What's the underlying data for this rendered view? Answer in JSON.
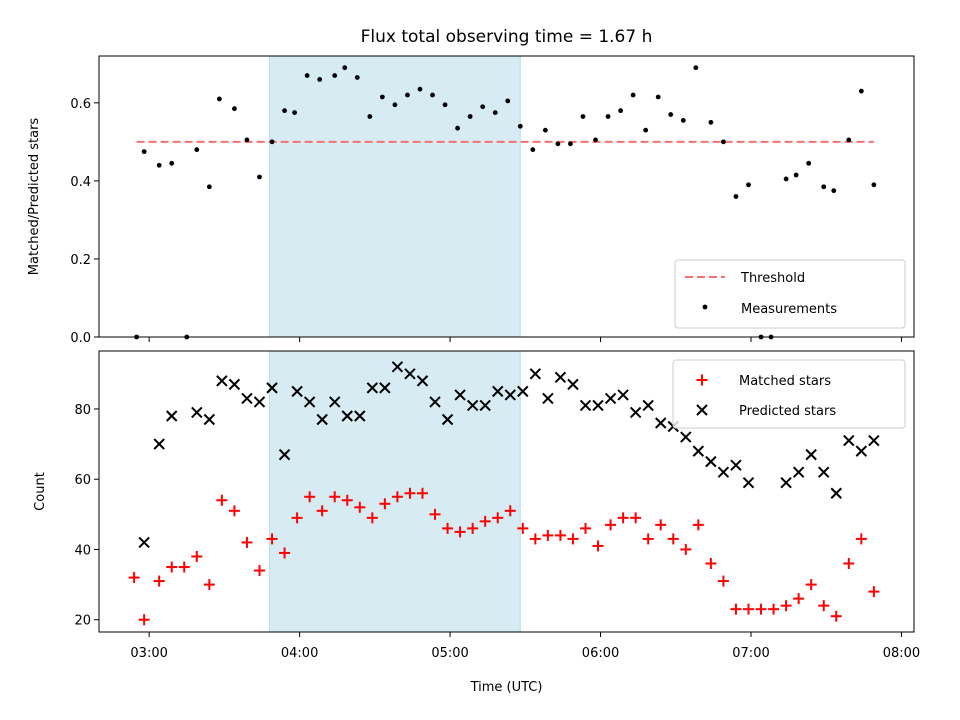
{
  "chart_data": [
    {
      "type": "scatter",
      "title": "Flux total observing time = 1.67 h",
      "ylabel": "Matched/Predicted stars",
      "xlim": [
        "02:40",
        "08:05"
      ],
      "ylim": [
        0,
        0.72
      ],
      "yticks": [
        "0.0",
        "0.2",
        "0.4",
        "0.6"
      ],
      "shaded_interval": [
        "03:48",
        "05:28"
      ],
      "legend_position": "lower right",
      "threshold": {
        "name": "Threshold",
        "value": 0.5,
        "x_range": [
          "02:55",
          "07:49"
        ],
        "color": "#f87171"
      },
      "series": [
        {
          "name": "Measurements",
          "color": "#000000",
          "marker": "dot",
          "points": [
            [
              "02:55",
              0.0
            ],
            [
              "02:58",
              0.475
            ],
            [
              "03:04",
              0.44
            ],
            [
              "03:09",
              0.445
            ],
            [
              "03:15",
              0.0
            ],
            [
              "03:19",
              0.48
            ],
            [
              "03:24",
              0.385
            ],
            [
              "03:28",
              0.61
            ],
            [
              "03:34",
              0.585
            ],
            [
              "03:39",
              0.505
            ],
            [
              "03:44",
              0.41
            ],
            [
              "03:49",
              0.5
            ],
            [
              "03:54",
              0.58
            ],
            [
              "03:58",
              0.575
            ],
            [
              "04:03",
              0.67
            ],
            [
              "04:08",
              0.66
            ],
            [
              "04:14",
              0.67
            ],
            [
              "04:18",
              0.69
            ],
            [
              "04:23",
              0.665
            ],
            [
              "04:28",
              0.565
            ],
            [
              "04:33",
              0.615
            ],
            [
              "04:38",
              0.595
            ],
            [
              "04:43",
              0.62
            ],
            [
              "04:48",
              0.635
            ],
            [
              "04:53",
              0.62
            ],
            [
              "04:58",
              0.595
            ],
            [
              "05:03",
              0.535
            ],
            [
              "05:08",
              0.565
            ],
            [
              "05:13",
              0.59
            ],
            [
              "05:18",
              0.575
            ],
            [
              "05:23",
              0.605
            ],
            [
              "05:28",
              0.54
            ],
            [
              "05:33",
              0.48
            ],
            [
              "05:38",
              0.53
            ],
            [
              "05:43",
              0.495
            ],
            [
              "05:48",
              0.495
            ],
            [
              "05:53",
              0.565
            ],
            [
              "05:58",
              0.505
            ],
            [
              "06:03",
              0.565
            ],
            [
              "06:08",
              0.58
            ],
            [
              "06:13",
              0.62
            ],
            [
              "06:18",
              0.53
            ],
            [
              "06:23",
              0.615
            ],
            [
              "06:28",
              0.57
            ],
            [
              "06:33",
              0.555
            ],
            [
              "06:38",
              0.69
            ],
            [
              "06:44",
              0.55
            ],
            [
              "06:49",
              0.5
            ],
            [
              "06:54",
              0.36
            ],
            [
              "06:59",
              0.39
            ],
            [
              "07:04",
              0.0
            ],
            [
              "07:08",
              0.0
            ],
            [
              "07:14",
              0.405
            ],
            [
              "07:18",
              0.415
            ],
            [
              "07:23",
              0.445
            ],
            [
              "07:29",
              0.385
            ],
            [
              "07:33",
              0.375
            ],
            [
              "07:39",
              0.505
            ],
            [
              "07:44",
              0.63
            ],
            [
              "07:49",
              0.39
            ]
          ]
        }
      ]
    },
    {
      "type": "scatter",
      "xlabel": "Time (UTC)",
      "ylabel": "Count",
      "xlim": [
        "02:40",
        "08:05"
      ],
      "ylim": [
        16.5,
        96.5
      ],
      "xticks": [
        "03:00",
        "04:00",
        "05:00",
        "06:00",
        "07:00",
        "08:00"
      ],
      "yticks": [
        "20",
        "40",
        "60",
        "80"
      ],
      "shaded_interval": [
        "03:48",
        "05:28"
      ],
      "legend_position": "upper right",
      "series": [
        {
          "name": "Matched stars",
          "color": "#ff0000",
          "marker": "plus",
          "points": [
            [
              "02:54",
              32
            ],
            [
              "02:58",
              20
            ],
            [
              "03:04",
              31
            ],
            [
              "03:09",
              35
            ],
            [
              "03:14",
              35
            ],
            [
              "03:19",
              38
            ],
            [
              "03:24",
              30
            ],
            [
              "03:29",
              54
            ],
            [
              "03:34",
              51
            ],
            [
              "03:39",
              42
            ],
            [
              "03:44",
              34
            ],
            [
              "03:49",
              43
            ],
            [
              "03:54",
              39
            ],
            [
              "03:59",
              49
            ],
            [
              "04:04",
              55
            ],
            [
              "04:09",
              51
            ],
            [
              "04:14",
              55
            ],
            [
              "04:19",
              54
            ],
            [
              "04:24",
              52
            ],
            [
              "04:29",
              49
            ],
            [
              "04:34",
              53
            ],
            [
              "04:39",
              55
            ],
            [
              "04:44",
              56
            ],
            [
              "04:49",
              56
            ],
            [
              "04:54",
              50
            ],
            [
              "04:59",
              46
            ],
            [
              "05:04",
              45
            ],
            [
              "05:09",
              46
            ],
            [
              "05:14",
              48
            ],
            [
              "05:19",
              49
            ],
            [
              "05:24",
              51
            ],
            [
              "05:29",
              46
            ],
            [
              "05:34",
              43
            ],
            [
              "05:39",
              44
            ],
            [
              "05:44",
              44
            ],
            [
              "05:49",
              43
            ],
            [
              "05:54",
              46
            ],
            [
              "05:59",
              41
            ],
            [
              "06:04",
              47
            ],
            [
              "06:09",
              49
            ],
            [
              "06:14",
              49
            ],
            [
              "06:19",
              43
            ],
            [
              "06:24",
              47
            ],
            [
              "06:29",
              43
            ],
            [
              "06:34",
              40
            ],
            [
              "06:39",
              47
            ],
            [
              "06:44",
              36
            ],
            [
              "06:49",
              31
            ],
            [
              "06:54",
              23
            ],
            [
              "06:59",
              23
            ],
            [
              "07:04",
              23
            ],
            [
              "07:09",
              23
            ],
            [
              "07:14",
              24
            ],
            [
              "07:19",
              26
            ],
            [
              "07:24",
              30
            ],
            [
              "07:29",
              24
            ],
            [
              "07:34",
              21
            ],
            [
              "07:39",
              36
            ],
            [
              "07:44",
              43
            ],
            [
              "07:49",
              28
            ]
          ]
        },
        {
          "name": "Predicted stars",
          "color": "#000000",
          "marker": "x",
          "points": [
            [
              "02:58",
              42
            ],
            [
              "03:04",
              70
            ],
            [
              "03:09",
              78
            ],
            [
              "03:19",
              79
            ],
            [
              "03:24",
              77
            ],
            [
              "03:29",
              88
            ],
            [
              "03:34",
              87
            ],
            [
              "03:39",
              83
            ],
            [
              "03:44",
              82
            ],
            [
              "03:49",
              86
            ],
            [
              "03:54",
              67
            ],
            [
              "03:59",
              85
            ],
            [
              "04:04",
              82
            ],
            [
              "04:09",
              77
            ],
            [
              "04:14",
              82
            ],
            [
              "04:19",
              78
            ],
            [
              "04:24",
              78
            ],
            [
              "04:29",
              86
            ],
            [
              "04:34",
              86
            ],
            [
              "04:39",
              92
            ],
            [
              "04:44",
              90
            ],
            [
              "04:49",
              88
            ],
            [
              "04:54",
              82
            ],
            [
              "04:59",
              77
            ],
            [
              "05:04",
              84
            ],
            [
              "05:09",
              81
            ],
            [
              "05:14",
              81
            ],
            [
              "05:19",
              85
            ],
            [
              "05:24",
              84
            ],
            [
              "05:29",
              85
            ],
            [
              "05:34",
              90
            ],
            [
              "05:39",
              83
            ],
            [
              "05:44",
              89
            ],
            [
              "05:49",
              87
            ],
            [
              "05:54",
              81
            ],
            [
              "05:59",
              81
            ],
            [
              "06:04",
              83
            ],
            [
              "06:09",
              84
            ],
            [
              "06:14",
              79
            ],
            [
              "06:19",
              81
            ],
            [
              "06:24",
              76
            ],
            [
              "06:29",
              75
            ],
            [
              "06:34",
              72
            ],
            [
              "06:39",
              68
            ],
            [
              "06:44",
              65
            ],
            [
              "06:49",
              62
            ],
            [
              "06:54",
              64
            ],
            [
              "06:59",
              59
            ],
            [
              "07:14",
              59
            ],
            [
              "07:19",
              62
            ],
            [
              "07:24",
              67
            ],
            [
              "07:29",
              62
            ],
            [
              "07:34",
              56
            ],
            [
              "07:39",
              71
            ],
            [
              "07:44",
              68
            ],
            [
              "07:49",
              71
            ]
          ]
        }
      ]
    }
  ]
}
